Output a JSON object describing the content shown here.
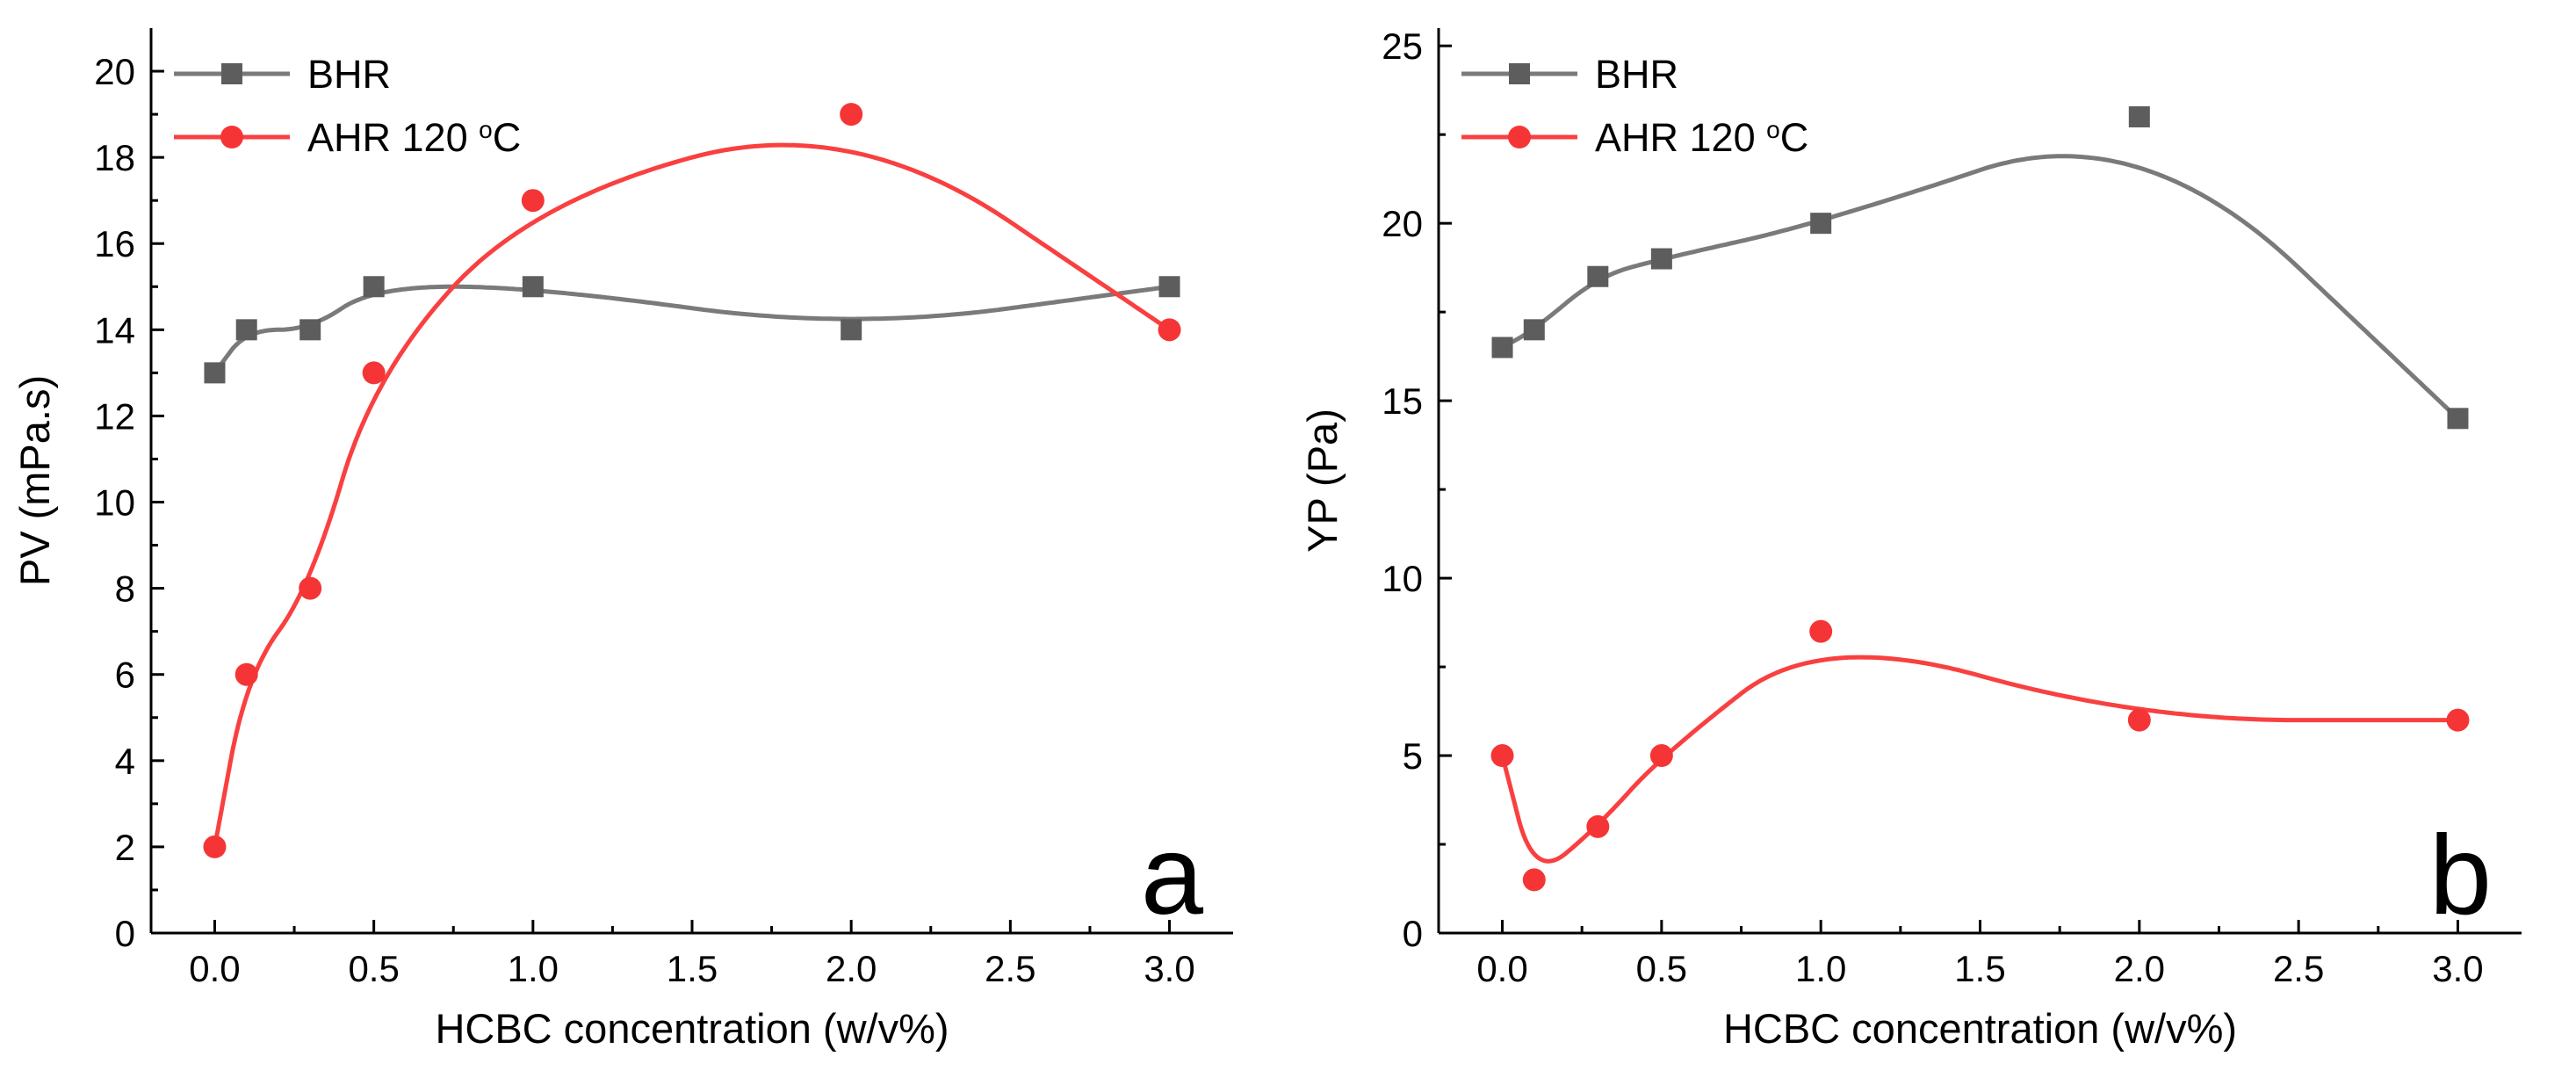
{
  "figure": {
    "background_color": "#ffffff",
    "axis_color": "#000000",
    "bhr_gray_line": "#7a7a7a",
    "bhr_gray_marker": "#5d5d5d",
    "ahr_red_line": "#f94040",
    "ahr_red_marker": "#f53535"
  },
  "chart_data": [
    {
      "type": "line",
      "panel_label": "a",
      "title": "",
      "xlabel": "HCBC concentration (w/v%)",
      "ylabel": "PV (mPa.s)",
      "xlim": [
        -0.2,
        3.2
      ],
      "ylim": [
        0,
        21
      ],
      "xtick_values": [
        0,
        0.5,
        1,
        1.5,
        2,
        2.5,
        3
      ],
      "xtick_labels": [
        "0.0",
        "0.5",
        "1.0",
        "1.5",
        "2.0",
        "2.5",
        "3.0"
      ],
      "ytick_values": [
        0,
        2,
        4,
        6,
        8,
        10,
        12,
        14,
        16,
        18,
        20
      ],
      "ytick_labels": [
        "0",
        "2",
        "4",
        "6",
        "8",
        "10",
        "12",
        "14",
        "16",
        "18",
        "20"
      ],
      "x": [
        0,
        0.1,
        0.3,
        0.5,
        1.0,
        2.0,
        3.0
      ],
      "series": [
        {
          "name": "BHR",
          "marker": "square",
          "line_color": "#7a7a7a",
          "marker_color": "#5d5d5d",
          "values": [
            13,
            14,
            14,
            15,
            15,
            14,
            15
          ]
        },
        {
          "name": "AHR 120 °C",
          "marker": "circle",
          "line_color": "#f94040",
          "marker_color": "#f53535",
          "values": [
            2,
            6,
            8,
            13,
            17,
            19,
            14
          ]
        }
      ],
      "legend_position": "top-left",
      "line_style": "smooth-bspline",
      "grid": false
    },
    {
      "type": "line",
      "panel_label": "b",
      "title": "",
      "xlabel": "HCBC concentration (w/v%)",
      "ylabel": "YP (Pa)",
      "xlim": [
        -0.2,
        3.2
      ],
      "ylim": [
        0,
        25.5
      ],
      "xtick_values": [
        0,
        0.5,
        1,
        1.5,
        2,
        2.5,
        3
      ],
      "xtick_labels": [
        "0.0",
        "0.5",
        "1.0",
        "1.5",
        "2.0",
        "2.5",
        "3.0"
      ],
      "ytick_values": [
        0,
        5,
        10,
        15,
        20,
        25
      ],
      "ytick_labels": [
        "0",
        "5",
        "10",
        "15",
        "20",
        "25"
      ],
      "x": [
        0,
        0.1,
        0.3,
        0.5,
        1.0,
        2.0,
        3.0
      ],
      "series": [
        {
          "name": "BHR",
          "marker": "square",
          "line_color": "#7a7a7a",
          "marker_color": "#5d5d5d",
          "values": [
            16.5,
            17,
            18.5,
            19,
            20,
            23,
            14.5
          ]
        },
        {
          "name": "AHR 120 °C",
          "marker": "circle",
          "line_color": "#f94040",
          "marker_color": "#f53535",
          "values": [
            5,
            1.5,
            3,
            5,
            8.5,
            6,
            6
          ]
        }
      ],
      "legend_position": "top-left",
      "line_style": "smooth-bspline",
      "grid": false
    }
  ]
}
